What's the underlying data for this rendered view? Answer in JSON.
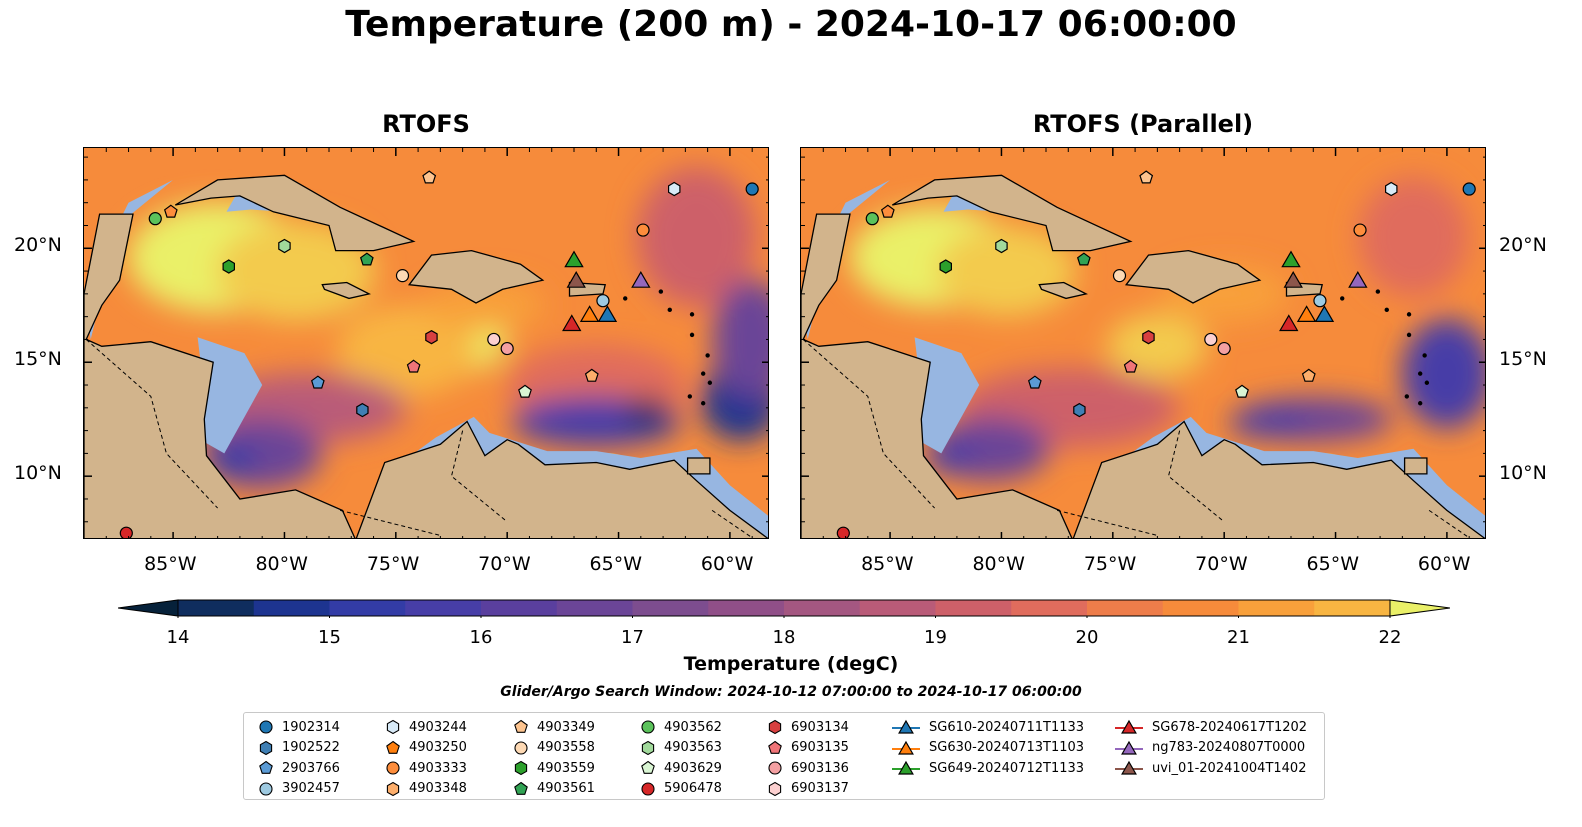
{
  "title": "Temperature (200 m) - 2024-10-17 06:00:00",
  "panels": [
    {
      "title": "RTOFS"
    },
    {
      "title": "RTOFS (Parallel)"
    }
  ],
  "map": {
    "lon_ticks": [
      "85°W",
      "80°W",
      "75°W",
      "70°W",
      "65°W",
      "60°W"
    ],
    "lat_ticks": [
      "20°N",
      "15°N",
      "10°N"
    ],
    "extent": {
      "lon_min": -89,
      "lon_max": -58.2,
      "lat_min": 7.2,
      "lat_max": 24.4
    },
    "land_color": "#d2b48c",
    "shelf_color": "#97b6e1"
  },
  "colorbar": {
    "label": "Temperature (degC)",
    "min": 14,
    "max": 22,
    "step": 0.5,
    "ticks": [
      "14",
      "15",
      "16",
      "17",
      "18",
      "19",
      "20",
      "21",
      "22"
    ],
    "colormap": "thermal",
    "colors": [
      "#06213a",
      "#0f2d5e",
      "#1d3490",
      "#333ca6",
      "#473ea7",
      "#5a3f9e",
      "#6b4597",
      "#7d4d8f",
      "#904f88",
      "#a45781",
      "#b95b78",
      "#cd6069",
      "#e06c5d",
      "#ee7d4a",
      "#f68b3b",
      "#f8a03b",
      "#f8b542",
      "#f3cb4d",
      "#eaf068"
    ]
  },
  "search_window": "Glider/Argo Search Window: 2024-10-12 07:00:00 to 2024-10-17 06:00:00",
  "legend": {
    "columns": [
      [
        {
          "label": "1902314",
          "shape": "circle",
          "color": "#1f77b4"
        },
        {
          "label": "1902522",
          "shape": "hexagon",
          "color": "#3f7fb4"
        },
        {
          "label": "2903766",
          "shape": "pentagon",
          "color": "#5b9bd5"
        },
        {
          "label": "3902457",
          "shape": "circle",
          "color": "#9ecae1"
        }
      ],
      [
        {
          "label": "4903244",
          "shape": "hexagon",
          "color": "#d8eaf7"
        },
        {
          "label": "4903250",
          "shape": "pentagon",
          "color": "#ff7f0e"
        },
        {
          "label": "4903333",
          "shape": "circle",
          "color": "#fd8d3c"
        },
        {
          "label": "4903348",
          "shape": "hexagon",
          "color": "#fdae6b"
        }
      ],
      [
        {
          "label": "4903349",
          "shape": "pentagon",
          "color": "#fdc48f"
        },
        {
          "label": "4903558",
          "shape": "circle",
          "color": "#fdd9b4"
        },
        {
          "label": "4903559",
          "shape": "hexagon",
          "color": "#2ca02c"
        },
        {
          "label": "4903561",
          "shape": "pentagon",
          "color": "#31a354"
        }
      ],
      [
        {
          "label": "4903562",
          "shape": "circle",
          "color": "#5bc25b"
        },
        {
          "label": "4903563",
          "shape": "hexagon",
          "color": "#a1d99b"
        },
        {
          "label": "4903629",
          "shape": "pentagon",
          "color": "#d9f5d3"
        },
        {
          "label": "5906478",
          "shape": "circle",
          "color": "#d62728"
        }
      ],
      [
        {
          "label": "6903134",
          "shape": "hexagon",
          "color": "#d84040"
        },
        {
          "label": "6903135",
          "shape": "pentagon",
          "color": "#f07478"
        },
        {
          "label": "6903136",
          "shape": "circle",
          "color": "#f4a0a2"
        },
        {
          "label": "6903137",
          "shape": "hexagon",
          "color": "#fcd0d0"
        }
      ],
      [
        {
          "label": "SG610-20240711T1133",
          "shape": "triangle-line",
          "color": "#1f77b4"
        },
        {
          "label": "SG630-20240713T1103",
          "shape": "triangle-line",
          "color": "#ff7f0e"
        },
        {
          "label": "SG649-20240712T1133",
          "shape": "triangle-line",
          "color": "#2ca02c"
        }
      ],
      [
        {
          "label": "SG678-20240617T1202",
          "shape": "triangle-line",
          "color": "#d62728"
        },
        {
          "label": "ng783-20240807T0000",
          "shape": "triangle-line",
          "color": "#9467bd"
        },
        {
          "label": "uvi_01-20241004T1402",
          "shape": "triangle-line",
          "color": "#8c564b"
        }
      ]
    ]
  }
}
